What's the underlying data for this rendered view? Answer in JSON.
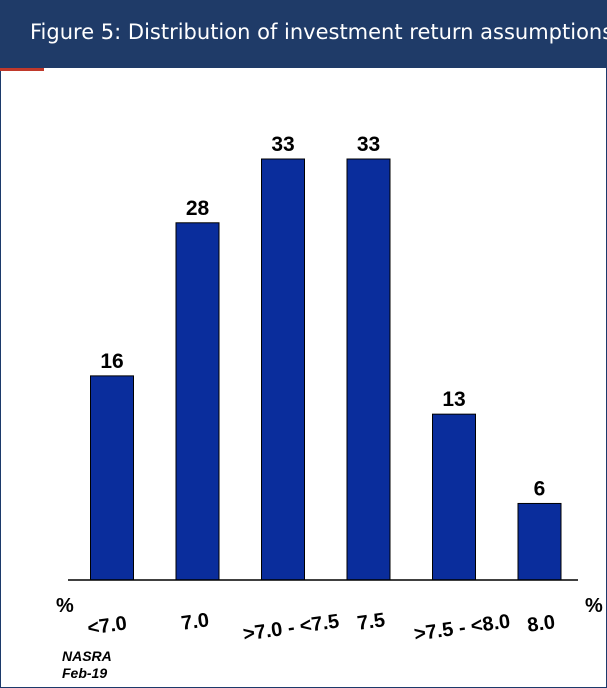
{
  "header": {
    "title": "Figure 5: Distribution of investment return assumptions",
    "background": "#1f3b68",
    "accent": "#c0392b"
  },
  "source": {
    "line1": "NASRA",
    "line2": "Feb-19"
  },
  "chart_data": {
    "type": "bar",
    "categories": [
      "<7.0",
      "7.0",
      ">7.0 - <7.5",
      "7.5",
      ">7.5 - <8.0",
      "8.0"
    ],
    "values": [
      16,
      28,
      33,
      33,
      13,
      6
    ],
    "ylim": [
      0,
      33
    ],
    "left_unit": "%",
    "right_unit": "%",
    "bar_color": "#0a2d9c",
    "grid": false,
    "legend": "none"
  }
}
